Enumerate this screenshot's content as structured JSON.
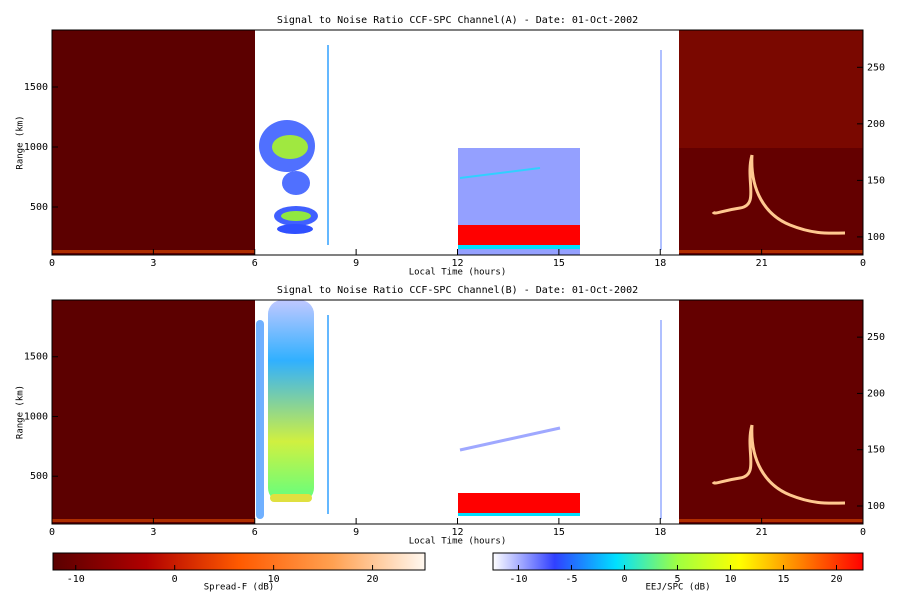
{
  "chart_data": [
    {
      "type": "heatmap",
      "title": "Signal to Noise Ratio CCF-SPC Channel(A) - Date: 01-Oct-2002",
      "xlabel": "Local Time (hours)",
      "ylabel": "Range (km)",
      "xlim": [
        0,
        24
      ],
      "xticks": [
        0,
        3,
        6,
        9,
        12,
        15,
        18,
        21,
        {
          "value": 24,
          "label": "0"
        }
      ],
      "ylim": [
        100,
        1975
      ],
      "yticks": [
        500,
        1000,
        1500
      ],
      "y2lim": [
        84,
        283
      ],
      "y2ticks": [
        100,
        150,
        200,
        250
      ]
    },
    {
      "type": "heatmap",
      "title": "Signal to Noise Ratio CCF-SPC Channel(B) - Date: 01-Oct-2002",
      "xlabel": "Local Time (hours)",
      "ylabel": "Range (km)",
      "xlim": [
        0,
        24
      ],
      "xticks": [
        0,
        3,
        6,
        9,
        12,
        15,
        18,
        21,
        {
          "value": 24,
          "label": "0"
        }
      ],
      "ylim": [
        100,
        1975
      ],
      "yticks": [
        500,
        1000,
        1500
      ],
      "y2lim": [
        84,
        283
      ],
      "y2ticks": [
        100,
        150,
        200,
        250
      ]
    },
    {
      "type": "colorbar",
      "label": "Spread-F (dB)",
      "clim": [
        -12.3,
        25.3
      ],
      "ticks": [
        -10,
        0,
        10,
        20
      ],
      "colors": [
        "#5a0000",
        "#b00000",
        "#ff5a00",
        "#ffa050",
        "#fff8f0"
      ]
    },
    {
      "type": "colorbar",
      "label": "EEJ/SPC (dB)",
      "clim": [
        -12.4,
        22.5
      ],
      "ticks": [
        -10,
        -5,
        0,
        5,
        10,
        15,
        20
      ],
      "colors": [
        "#ffffff",
        "#3040ff",
        "#00e0ff",
        "#a0ff40",
        "#ffff00",
        "#ff8000",
        "#ff0000"
      ]
    }
  ]
}
